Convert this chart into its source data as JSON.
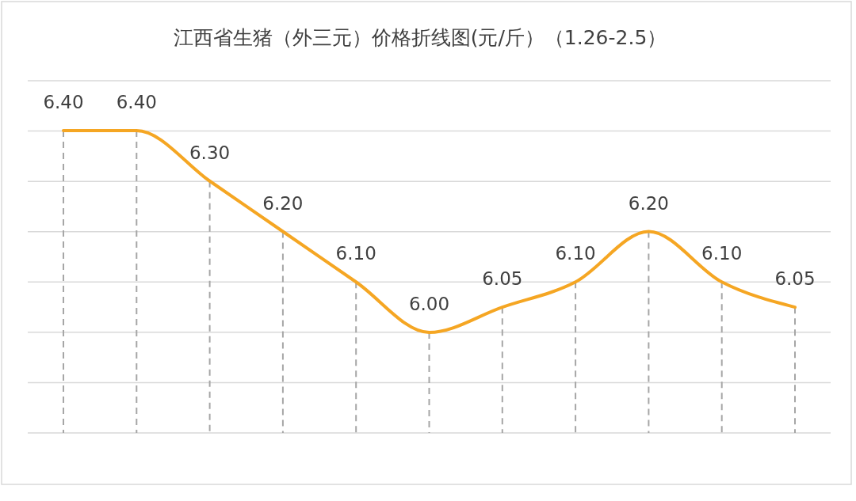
{
  "chart_data": {
    "type": "line",
    "title": "江西省生猪（外三元）价格折线图(元/斤）（1.26-2.5）",
    "categories": [
      null,
      null,
      null,
      null,
      null,
      null,
      null,
      null,
      null,
      null,
      null
    ],
    "series": [
      {
        "color": "#f5a623",
        "values": [
          6.4,
          6.4,
          6.3,
          6.2,
          6.1,
          6.0,
          6.05,
          6.1,
          6.2,
          6.1,
          6.05
        ],
        "value_labels": [
          "6.40",
          "6.40",
          "6.30",
          "6.20",
          "6.10",
          "6.00",
          "6.05",
          "6.10",
          "6.20",
          "6.10",
          "6.05"
        ]
      }
    ],
    "grid": true
  }
}
